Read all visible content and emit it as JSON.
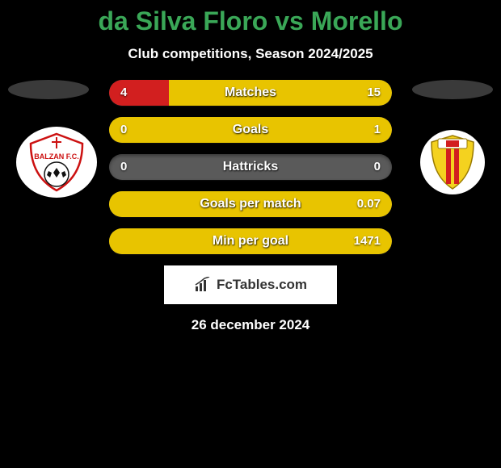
{
  "title_color": "#3aa757",
  "title": "da Silva Floro vs Morello",
  "subtitle": "Club competitions, Season 2024/2025",
  "date": "26 december 2024",
  "watermark": "FcTables.com",
  "bar_track_color": "#5a5a5a",
  "bar_left_color": "#d21f1f",
  "bar_right_color": "#e8c400",
  "team_left": {
    "name": "Balzan FC",
    "badge_bg": "#ffffff"
  },
  "team_right": {
    "name": "Birkirkara FC",
    "badge_bg": "#ffffff"
  },
  "stats": [
    {
      "label": "Matches",
      "left_val": "4",
      "right_val": "15",
      "left_pct": 21,
      "right_pct": 79
    },
    {
      "label": "Goals",
      "left_val": "0",
      "right_val": "1",
      "left_pct": 0,
      "right_pct": 100
    },
    {
      "label": "Hattricks",
      "left_val": "0",
      "right_val": "0",
      "left_pct": 0,
      "right_pct": 0
    },
    {
      "label": "Goals per match",
      "left_val": "",
      "right_val": "0.07",
      "left_pct": 0,
      "right_pct": 100
    },
    {
      "label": "Min per goal",
      "left_val": "",
      "right_val": "1471",
      "left_pct": 0,
      "right_pct": 100
    }
  ]
}
